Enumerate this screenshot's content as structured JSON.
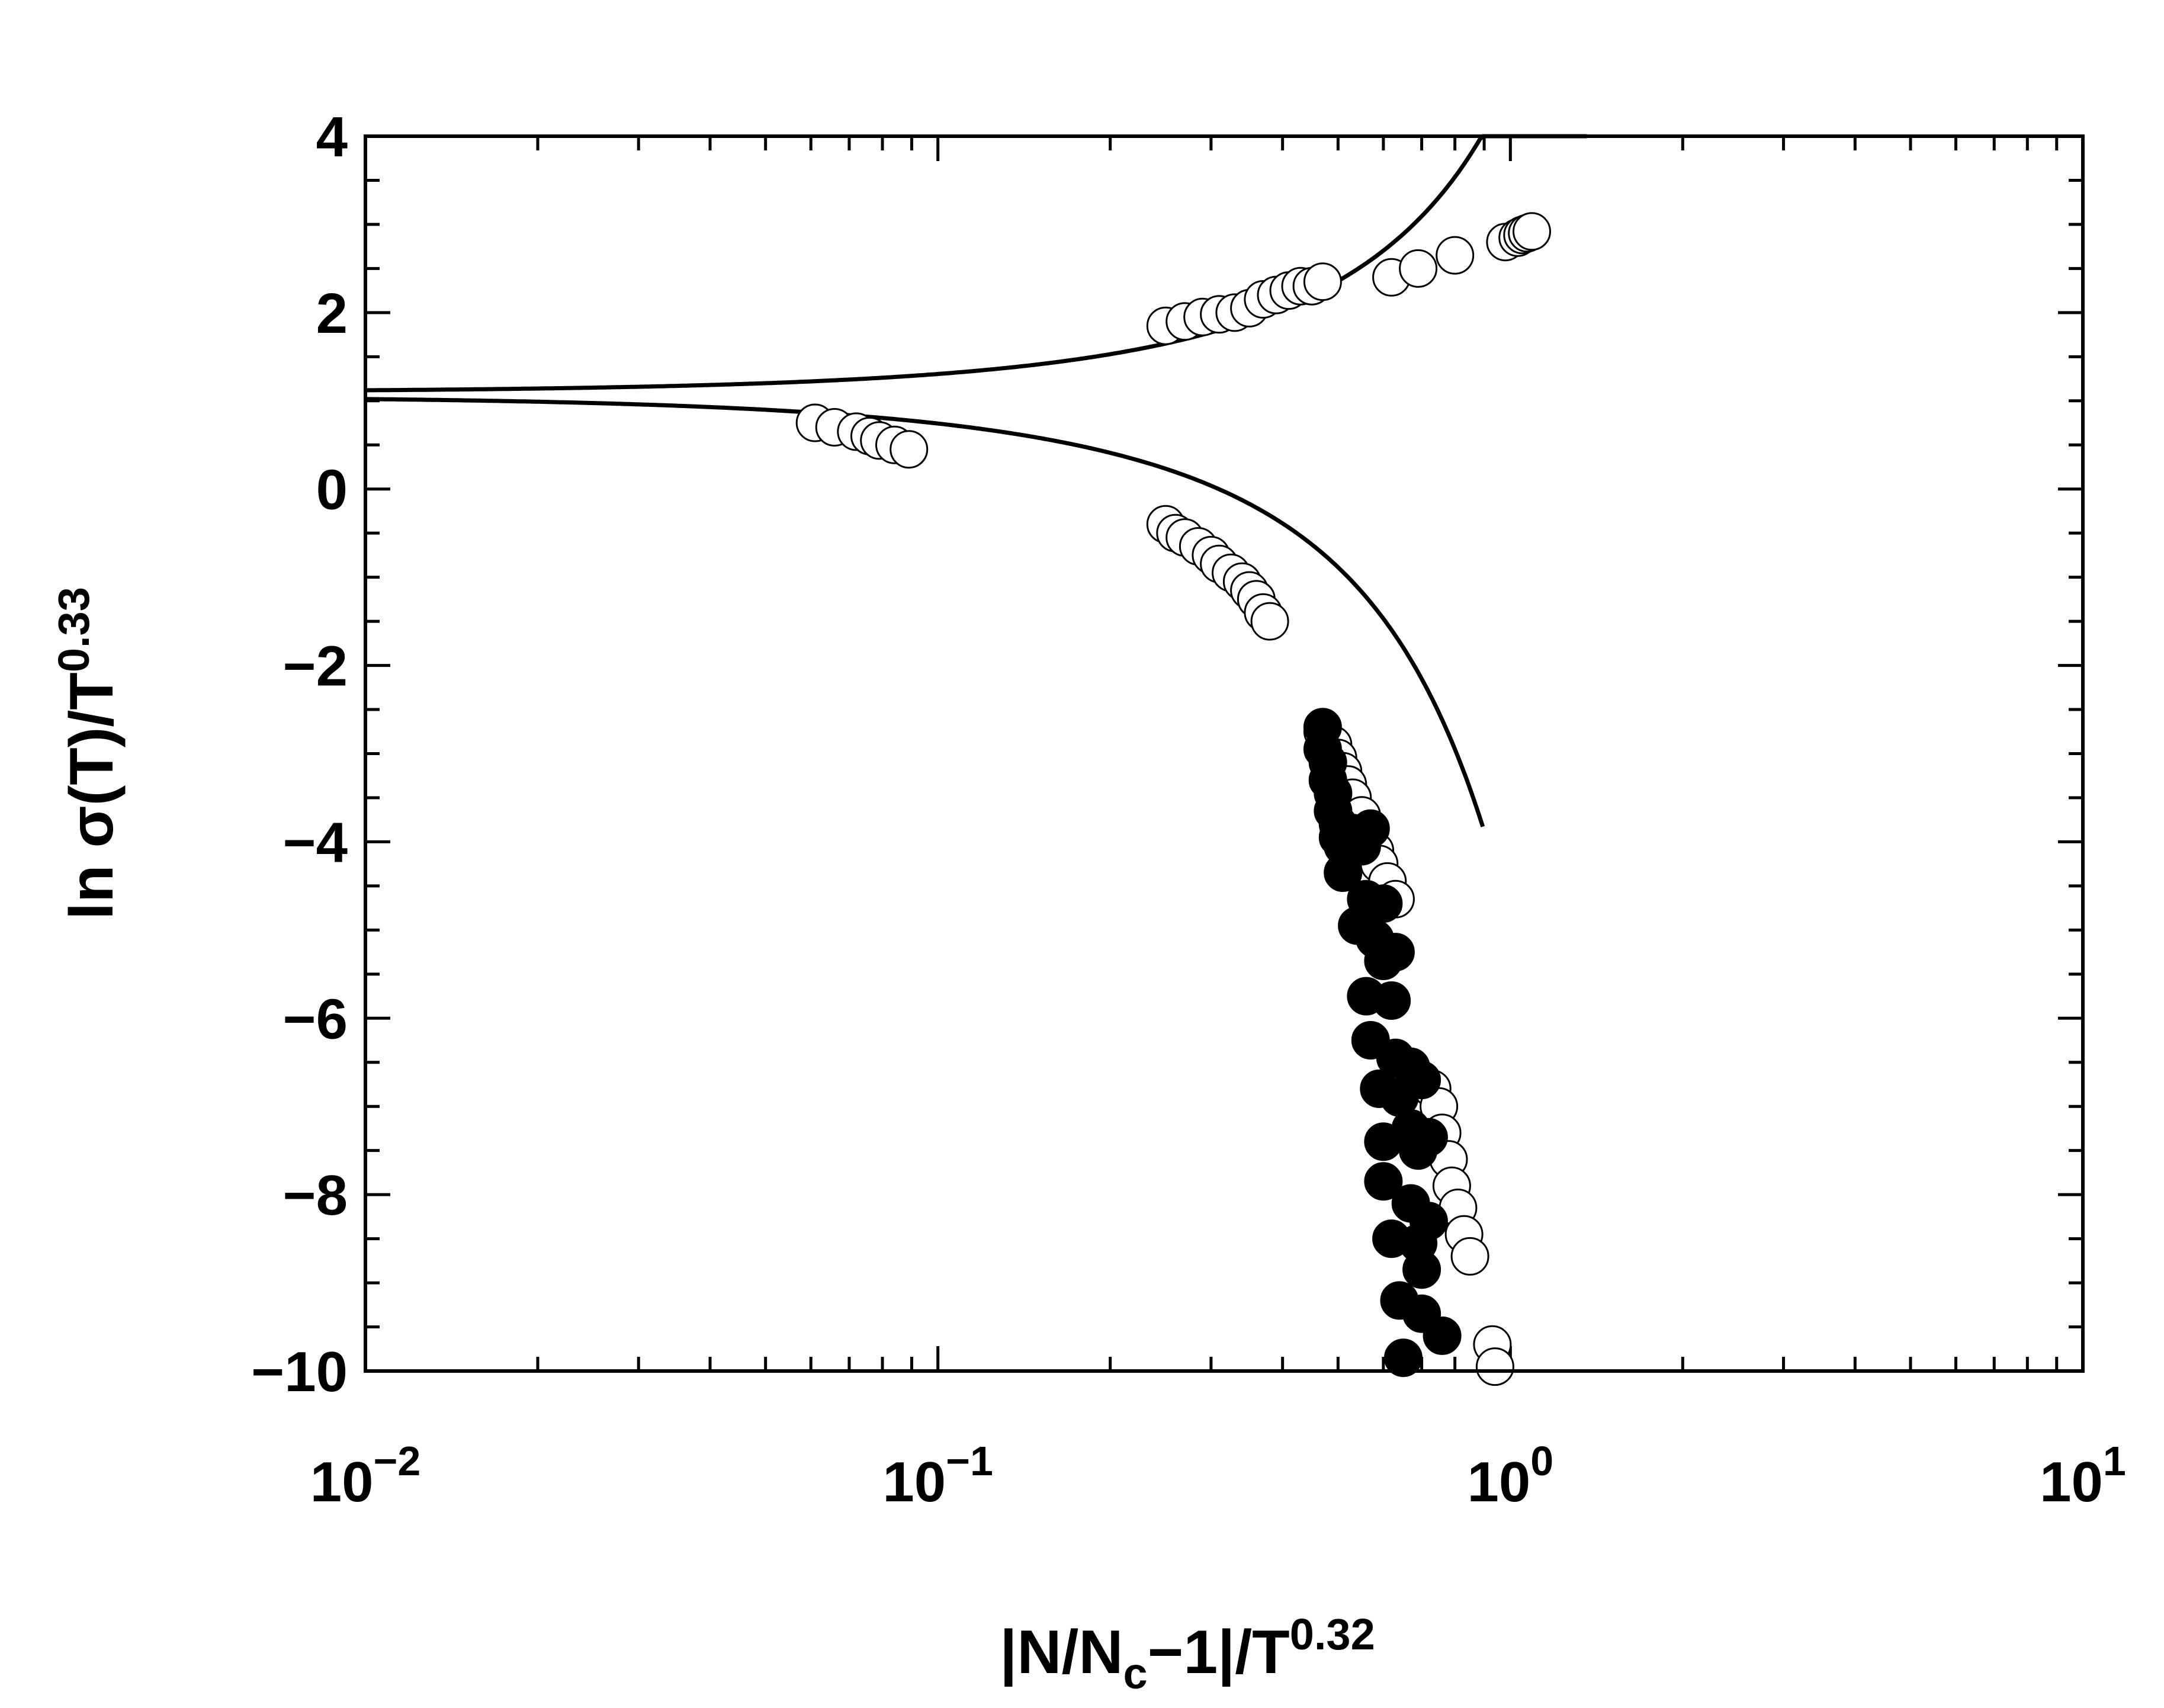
{
  "chart_data": {
    "type": "scatter",
    "title": "",
    "xlabel": {
      "a": "|N/N",
      "sub": "c",
      "b": "−1|/T",
      "sup": "0.32"
    },
    "ylabel": {
      "a": "ln σ(T)/T",
      "sup": "0.33"
    },
    "x_scale": "log",
    "xlim": [
      0.01,
      10
    ],
    "ylim": [
      -10,
      4
    ],
    "grid": false,
    "x_ticks": [
      {
        "value": 0.01,
        "base": "10",
        "exp": "−2"
      },
      {
        "value": 0.1,
        "base": "10",
        "exp": "−1"
      },
      {
        "value": 1,
        "base": "10",
        "exp": "0"
      },
      {
        "value": 10,
        "base": "10",
        "exp": "1"
      }
    ],
    "y_ticks": [
      {
        "value": 4,
        "label": "4"
      },
      {
        "value": 2,
        "label": "2"
      },
      {
        "value": 0,
        "label": "0"
      },
      {
        "value": -2,
        "label": "−2"
      },
      {
        "value": -4,
        "label": "−4"
      },
      {
        "value": -6,
        "label": "−6"
      },
      {
        "value": -8,
        "label": "−8"
      },
      {
        "value": -10,
        "label": "−10"
      }
    ],
    "series": [
      {
        "marker": "open-circle",
        "points": [
          [
            0.25,
            1.85
          ],
          [
            0.27,
            1.9
          ],
          [
            0.29,
            1.95
          ],
          [
            0.31,
            1.98
          ],
          [
            0.33,
            2.0
          ],
          [
            0.35,
            2.05
          ],
          [
            0.37,
            2.15
          ],
          [
            0.39,
            2.2
          ],
          [
            0.41,
            2.25
          ],
          [
            0.43,
            2.3
          ],
          [
            0.45,
            2.3
          ],
          [
            0.47,
            2.35
          ],
          [
            0.62,
            2.4
          ],
          [
            0.69,
            2.5
          ],
          [
            0.8,
            2.65
          ],
          [
            0.98,
            2.8
          ],
          [
            1.03,
            2.85
          ],
          [
            1.05,
            2.88
          ],
          [
            1.07,
            2.9
          ],
          [
            1.09,
            2.92
          ],
          [
            0.061,
            0.75
          ],
          [
            0.066,
            0.7
          ],
          [
            0.072,
            0.65
          ],
          [
            0.076,
            0.6
          ],
          [
            0.079,
            0.55
          ],
          [
            0.084,
            0.5
          ],
          [
            0.089,
            0.45
          ],
          [
            0.25,
            -0.4
          ],
          [
            0.26,
            -0.5
          ],
          [
            0.27,
            -0.55
          ],
          [
            0.285,
            -0.65
          ],
          [
            0.3,
            -0.75
          ],
          [
            0.31,
            -0.85
          ],
          [
            0.325,
            -0.95
          ],
          [
            0.34,
            -1.05
          ],
          [
            0.35,
            -1.15
          ],
          [
            0.36,
            -1.25
          ],
          [
            0.37,
            -1.4
          ],
          [
            0.38,
            -1.5
          ],
          [
            0.47,
            -2.75
          ],
          [
            0.49,
            -2.9
          ],
          [
            0.5,
            -3.05
          ],
          [
            0.51,
            -3.2
          ],
          [
            0.52,
            -3.35
          ],
          [
            0.53,
            -3.5
          ],
          [
            0.55,
            -3.7
          ],
          [
            0.56,
            -3.9
          ],
          [
            0.58,
            -4.1
          ],
          [
            0.59,
            -4.25
          ],
          [
            0.61,
            -4.45
          ],
          [
            0.63,
            -4.65
          ],
          [
            0.73,
            -6.8
          ],
          [
            0.75,
            -7.0
          ],
          [
            0.76,
            -7.3
          ],
          [
            0.78,
            -7.6
          ],
          [
            0.79,
            -7.9
          ],
          [
            0.81,
            -8.15
          ],
          [
            0.83,
            -8.45
          ],
          [
            0.85,
            -8.7
          ],
          [
            0.93,
            -9.7
          ],
          [
            0.94,
            -9.95
          ]
        ]
      },
      {
        "marker": "filled-circle",
        "points": [
          [
            0.47,
            -2.7
          ],
          [
            0.47,
            -2.95
          ],
          [
            0.48,
            -3.1
          ],
          [
            0.48,
            -3.3
          ],
          [
            0.49,
            -3.45
          ],
          [
            0.49,
            -3.65
          ],
          [
            0.5,
            -3.8
          ],
          [
            0.5,
            -3.95
          ],
          [
            0.51,
            -4.05
          ],
          [
            0.53,
            -3.9
          ],
          [
            0.55,
            -4.05
          ],
          [
            0.57,
            -3.85
          ],
          [
            0.51,
            -4.35
          ],
          [
            0.56,
            -4.65
          ],
          [
            0.6,
            -4.7
          ],
          [
            0.54,
            -4.95
          ],
          [
            0.58,
            -5.1
          ],
          [
            0.6,
            -5.35
          ],
          [
            0.63,
            -5.25
          ],
          [
            0.56,
            -5.75
          ],
          [
            0.62,
            -5.8
          ],
          [
            0.57,
            -6.25
          ],
          [
            0.63,
            -6.45
          ],
          [
            0.67,
            -6.55
          ],
          [
            0.59,
            -6.8
          ],
          [
            0.64,
            -6.9
          ],
          [
            0.7,
            -6.7
          ],
          [
            0.6,
            -7.4
          ],
          [
            0.67,
            -7.25
          ],
          [
            0.72,
            -7.35
          ],
          [
            0.69,
            -7.5
          ],
          [
            0.6,
            -7.85
          ],
          [
            0.67,
            -8.1
          ],
          [
            0.72,
            -8.3
          ],
          [
            0.62,
            -8.5
          ],
          [
            0.69,
            -8.55
          ],
          [
            0.7,
            -8.85
          ],
          [
            0.64,
            -9.2
          ],
          [
            0.7,
            -9.35
          ],
          [
            0.76,
            -9.6
          ],
          [
            0.65,
            -9.85
          ]
        ]
      }
    ],
    "curves": [
      {
        "name": "upper-fit",
        "x_start": 0.01,
        "x_end": 1.36
      },
      {
        "name": "lower-fit",
        "x_start": 0.01,
        "x_end": 0.895
      }
    ]
  }
}
